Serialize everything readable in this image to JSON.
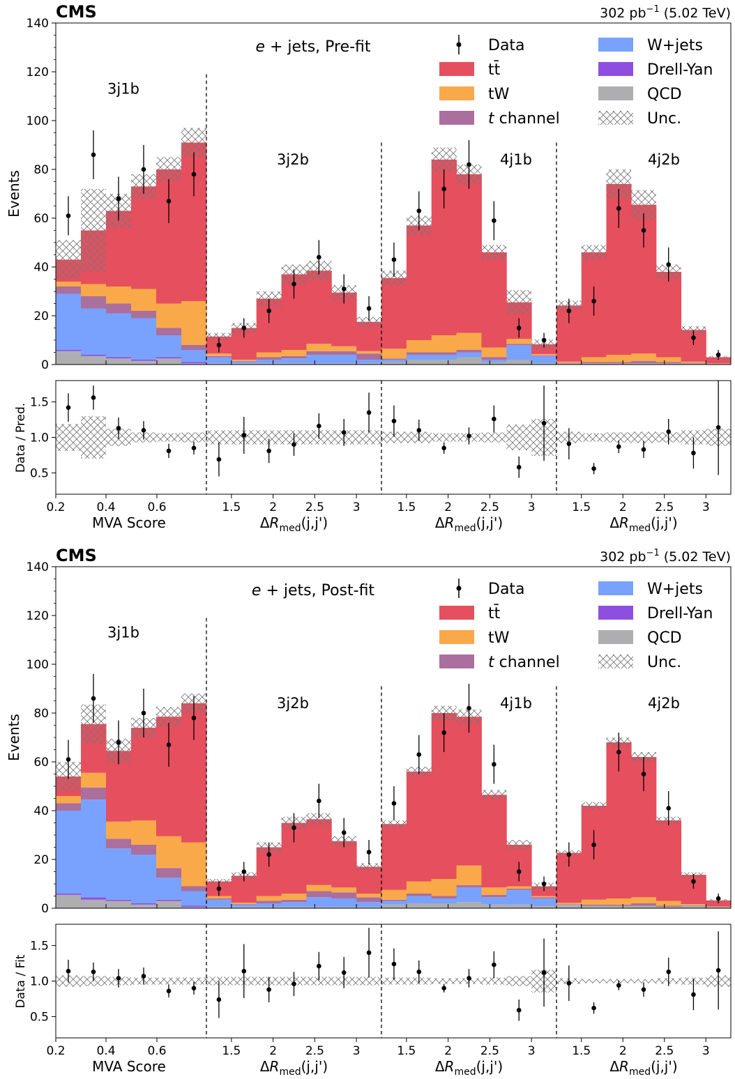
{
  "colors": {
    "ttbar": "#e64f5e",
    "tW": "#f9a94a",
    "tchannel": "#aa6f9d",
    "wjets": "#79a2ff",
    "dy": "#8e4fe1",
    "qcd": "#aeaeb1",
    "data": "#000000"
  },
  "panels": [
    {
      "id": "prefit",
      "experiment": "CMS",
      "lumi_prefix": "302 pb",
      "lumi_exp": "−1",
      "lumi_suffix": " (5.02 TeV)",
      "ylabel": "Events",
      "ratio_ylabel": "Data / Pred.",
      "channel_label": "e + jets, Pre-fit",
      "channel_var": "e",
      "channel_rest": " + jets, Pre-fit"
    },
    {
      "id": "postfit",
      "experiment": "CMS",
      "lumi_prefix": "302 pb",
      "lumi_exp": "−1",
      "lumi_suffix": " (5.02 TeV)",
      "ylabel": "Events",
      "ratio_ylabel": "Data / Fit",
      "channel_label": "e + jets, Post-fit",
      "channel_var": "e",
      "channel_rest": " + jets, Post-fit"
    }
  ],
  "legend": [
    {
      "key": "data",
      "label": "Data",
      "kind": "point"
    },
    {
      "key": "wjets",
      "label": "W+jets",
      "kind": "box"
    },
    {
      "key": "ttbar",
      "label": "tt̄",
      "kind": "box"
    },
    {
      "key": "dy",
      "label": "Drell-Yan",
      "kind": "box"
    },
    {
      "key": "tW",
      "label": "tW",
      "kind": "box"
    },
    {
      "key": "qcd",
      "label": "QCD",
      "kind": "box"
    },
    {
      "key": "tchannel",
      "label": "t channel",
      "italic_prefix": "t",
      "rest": " channel",
      "kind": "box"
    },
    {
      "key": "unc",
      "label": "Unc.",
      "kind": "hatch"
    }
  ],
  "chart_data": [
    {
      "type": "bar",
      "stacked": true,
      "title": "e + jets, Pre-fit",
      "ylabel": "Events",
      "ylim": [
        0,
        140
      ],
      "yticks": [
        0,
        20,
        40,
        60,
        80,
        100,
        120,
        140
      ],
      "ratio_ylabel": "Data / Pred.",
      "ratio_yticks": [
        "0.5",
        "1.0",
        "1.5"
      ],
      "regions": [
        {
          "label": "3j1b",
          "xlabel": "MVA Score",
          "x_ticks": [
            "0.2",
            "0.4",
            "0.6"
          ],
          "ttbar": [
            9,
            22,
            31,
            42,
            55,
            65
          ],
          "tW": [
            2,
            5,
            7,
            9,
            10,
            18
          ],
          "tchannel": [
            3,
            5,
            4,
            3,
            3,
            2
          ],
          "wjets": [
            23,
            19,
            18,
            17,
            9,
            5
          ],
          "dy": [
            0.5,
            0.5,
            0.5,
            0.5,
            0.5,
            0.5
          ],
          "qcd": [
            5.5,
            3.5,
            2.5,
            1.5,
            2.5,
            0.5
          ],
          "unc": [
            8,
            17,
            7,
            5,
            5,
            6
          ],
          "data": [
            61,
            86,
            68,
            80,
            67,
            78
          ],
          "data_err": [
            8,
            10,
            9,
            10,
            9,
            9
          ],
          "ratio": [
            1.42,
            1.56,
            1.13,
            1.1,
            0.81,
            0.85
          ],
          "ratio_err": [
            0.2,
            0.17,
            0.15,
            0.13,
            0.1,
            0.09
          ],
          "ratio_unc": [
            0.19,
            0.3,
            0.12,
            0.07,
            0.06,
            0.07
          ]
        },
        {
          "label": "3j2b",
          "xlabel": "ΔR_med(j,j')",
          "x_ticks": [
            "1.5",
            "2",
            "2.5",
            "3"
          ],
          "ttbar": [
            7,
            13,
            22,
            31,
            30,
            22,
            12
          ],
          "tW": [
            1,
            0.5,
            2,
            2.5,
            3,
            2,
            1
          ],
          "tchannel": [
            0.5,
            0.3,
            1,
            1,
            1.5,
            1.5,
            2.5
          ],
          "wjets": [
            2.5,
            0.7,
            1.5,
            2,
            3.5,
            3.5,
            1.5
          ],
          "dy": [
            0,
            0,
            0,
            0,
            0,
            0,
            0
          ],
          "qcd": [
            0.5,
            0.5,
            0.5,
            0.5,
            0.5,
            0.5,
            0.5
          ],
          "unc": [
            1.5,
            2,
            3,
            4,
            4,
            3,
            2
          ],
          "data": [
            8,
            15,
            22,
            33,
            44,
            31,
            23
          ],
          "data_err": [
            3,
            4,
            5,
            6,
            7,
            6,
            5
          ],
          "ratio": [
            0.69,
            1.03,
            0.81,
            0.9,
            1.16,
            1.07,
            1.35
          ],
          "ratio_err": [
            0.24,
            0.26,
            0.17,
            0.16,
            0.18,
            0.19,
            0.28
          ],
          "ratio_unc": [
            0.1,
            0.1,
            0.1,
            0.1,
            0.1,
            0.1,
            0.1
          ]
        },
        {
          "label": "4j1b",
          "xlabel": "ΔR_med(j,j')",
          "x_ticks": [
            "1.5",
            "2",
            "2.5",
            "3"
          ],
          "ttbar": [
            29,
            47,
            72,
            65,
            39,
            15,
            4
          ],
          "tW": [
            4,
            5,
            7,
            7,
            4,
            2,
            0.5
          ],
          "tchannel": [
            0.5,
            1,
            1,
            1,
            1,
            0.5,
            0.3
          ],
          "wjets": [
            1,
            2,
            2,
            2,
            1,
            6,
            3
          ],
          "dy": [
            0,
            0,
            0,
            0,
            0,
            0,
            0
          ],
          "qcd": [
            1,
            2,
            2,
            3,
            1,
            2,
            0.5
          ],
          "unc": [
            3,
            4,
            5,
            4,
            3,
            5,
            2
          ],
          "data": [
            43,
            63,
            72,
            82,
            59,
            15,
            10
          ],
          "data_err": [
            7,
            8,
            8,
            10,
            8,
            4,
            3
          ],
          "ratio": [
            1.23,
            1.1,
            0.85,
            1.02,
            1.26,
            0.58,
            1.2
          ],
          "ratio_err": [
            0.22,
            0.15,
            0.08,
            0.12,
            0.19,
            0.15,
            0.53
          ],
          "ratio_unc": [
            0.08,
            0.08,
            0.06,
            0.06,
            0.07,
            0.18,
            0.26
          ]
        },
        {
          "label": "4j2b",
          "xlabel": "ΔR_med(j,j')",
          "x_ticks": [
            "1.5",
            "2",
            "2.5",
            "3"
          ],
          "ttbar": [
            23,
            43,
            70,
            61,
            35,
            13,
            2.5
          ],
          "tW": [
            0.5,
            2,
            3,
            3,
            2,
            0.5,
            0.1
          ],
          "tchannel": [
            0.2,
            0.5,
            0.5,
            1,
            0.5,
            0.2,
            0.1
          ],
          "wjets": [
            0,
            0,
            0,
            0,
            0,
            0,
            0
          ],
          "dy": [
            0,
            0,
            0,
            0,
            0,
            0,
            0
          ],
          "qcd": [
            0.5,
            0.5,
            0.5,
            0.5,
            0.5,
            0.5,
            0.3
          ],
          "unc": [
            2,
            3,
            6,
            6,
            3,
            1.5,
            0.5
          ],
          "data": [
            22,
            26,
            64,
            55,
            41,
            11,
            4
          ],
          "data_err": [
            5,
            6,
            8,
            7,
            7,
            3,
            2
          ],
          "ratio": [
            0.91,
            0.56,
            0.87,
            0.83,
            1.08,
            0.78,
            1.14
          ],
          "ratio_err": [
            0.22,
            0.08,
            0.09,
            0.12,
            0.18,
            0.22,
            0.67
          ],
          "ratio_unc": [
            0.08,
            0.06,
            0.07,
            0.08,
            0.07,
            0.1,
            0.12
          ]
        }
      ]
    },
    {
      "type": "bar",
      "stacked": true,
      "title": "e + jets, Post-fit",
      "ylabel": "Events",
      "ylim": [
        0,
        140
      ],
      "yticks": [
        0,
        20,
        40,
        60,
        80,
        100,
        120,
        140
      ],
      "ratio_ylabel": "Data / Fit",
      "ratio_yticks": [
        "0.5",
        "1.0",
        "1.5"
      ],
      "regions": [
        {
          "label": "3j1b",
          "xlabel": "MVA Score",
          "x_ticks": [
            "0.2",
            "0.4",
            "0.6"
          ],
          "ttbar": [
            8,
            20,
            29,
            38,
            49,
            57
          ],
          "tW": [
            3,
            6,
            7,
            10,
            13,
            18
          ],
          "tchannel": [
            3,
            5,
            4,
            4,
            4,
            2
          ],
          "wjets": [
            34,
            40,
            21,
            20,
            9,
            6
          ],
          "dy": [
            0.5,
            1,
            0.5,
            0.5,
            0.5,
            0.5
          ],
          "qcd": [
            5.5,
            3.5,
            3,
            1.5,
            3,
            0.5
          ],
          "unc": [
            6,
            8,
            5,
            4,
            4,
            4
          ],
          "data": [
            61,
            86,
            68,
            80,
            67,
            78
          ],
          "data_err": [
            8,
            10,
            9,
            10,
            9,
            9
          ],
          "ratio": [
            1.14,
            1.13,
            1.04,
            1.07,
            0.86,
            0.9
          ],
          "ratio_err": [
            0.16,
            0.13,
            0.13,
            0.12,
            0.09,
            0.09
          ],
          "ratio_unc": [
            0.08,
            0.07,
            0.06,
            0.05,
            0.05,
            0.05
          ]
        },
        {
          "label": "3j2b",
          "xlabel": "ΔR_med(j,j')",
          "x_ticks": [
            "1.5",
            "2",
            "2.5",
            "3"
          ],
          "ttbar": [
            6,
            11,
            20,
            29,
            27,
            19,
            11
          ],
          "tW": [
            1,
            0.5,
            2,
            2.5,
            2.5,
            2,
            1.5
          ],
          "tchannel": [
            0.5,
            0.3,
            1,
            1,
            2.5,
            2.5,
            2
          ],
          "wjets": [
            3,
            1,
            1.5,
            2,
            4,
            3.5,
            2
          ],
          "dy": [
            0,
            0,
            0,
            0,
            0,
            0,
            0
          ],
          "qcd": [
            0.5,
            0.5,
            0.5,
            0.5,
            0.5,
            0.5,
            0.5
          ],
          "unc": [
            1,
            1.5,
            2,
            2.5,
            2.5,
            2,
            1.5
          ],
          "data": [
            8,
            15,
            22,
            33,
            44,
            31,
            23
          ],
          "data_err": [
            3,
            4,
            5,
            6,
            7,
            6,
            5
          ],
          "ratio": [
            0.74,
            1.14,
            0.88,
            0.96,
            1.21,
            1.12,
            1.4
          ],
          "ratio_err": [
            0.26,
            0.38,
            0.18,
            0.17,
            0.2,
            0.22,
            0.35
          ],
          "ratio_unc": [
            0.06,
            0.06,
            0.06,
            0.06,
            0.06,
            0.06,
            0.06
          ]
        },
        {
          "label": "4j1b",
          "xlabel": "ΔR_med(j,j')",
          "x_ticks": [
            "1.5",
            "2",
            "2.5",
            "3"
          ],
          "ttbar": [
            27,
            45,
            68,
            61,
            38,
            17,
            4
          ],
          "tW": [
            4,
            5,
            7,
            8,
            3,
            1,
            0.5
          ],
          "tchannel": [
            0.5,
            1,
            1,
            1,
            1,
            0.5,
            0.5
          ],
          "wjets": [
            1.5,
            3,
            2,
            6,
            3,
            6,
            3
          ],
          "dy": [
            0,
            0,
            0,
            0,
            0,
            0,
            0
          ],
          "qcd": [
            1.5,
            2,
            2,
            2.5,
            1.5,
            1.5,
            1
          ],
          "unc": [
            1.5,
            2,
            3,
            3,
            2,
            2,
            1.5
          ],
          "data": [
            43,
            63,
            72,
            82,
            59,
            15,
            10
          ],
          "data_err": [
            7,
            8,
            8,
            10,
            8,
            4,
            3
          ],
          "ratio": [
            1.24,
            1.13,
            0.9,
            1.04,
            1.23,
            0.59,
            1.12
          ],
          "ratio_err": [
            0.22,
            0.16,
            0.06,
            0.13,
            0.19,
            0.15,
            0.48
          ],
          "ratio_unc": [
            0.05,
            0.05,
            0.04,
            0.04,
            0.05,
            0.07,
            0.16
          ]
        },
        {
          "label": "4j2b",
          "xlabel": "ΔR_med(j,j')",
          "x_ticks": [
            "1.5",
            "2",
            "2.5",
            "3"
          ],
          "ttbar": [
            20.5,
            38.5,
            64,
            57.5,
            33,
            12,
            2.5
          ],
          "tW": [
            0.5,
            2,
            2.5,
            2.5,
            2,
            0.5,
            0.1
          ],
          "tchannel": [
            0.2,
            0.5,
            0.5,
            1,
            0.5,
            0.2,
            0.1
          ],
          "wjets": [
            0,
            0,
            0,
            0,
            0,
            0,
            0
          ],
          "dy": [
            0,
            0,
            0,
            0,
            0,
            0,
            0
          ],
          "qcd": [
            1.5,
            1,
            1,
            1,
            0.5,
            1,
            0.5
          ],
          "unc": [
            1,
            1.5,
            2,
            2,
            1.5,
            1,
            0.5
          ],
          "data": [
            22,
            26,
            64,
            55,
            41,
            11,
            4
          ],
          "data_err": [
            5,
            6,
            8,
            7,
            7,
            3,
            2
          ],
          "ratio": [
            0.97,
            0.62,
            0.94,
            0.88,
            1.13,
            0.81,
            1.15
          ],
          "ratio_err": [
            0.25,
            0.08,
            0.07,
            0.1,
            0.2,
            0.22,
            0.55
          ],
          "ratio_unc": [
            0.04,
            0.03,
            0.03,
            0.03,
            0.04,
            0.05,
            0.08
          ]
        }
      ]
    }
  ]
}
